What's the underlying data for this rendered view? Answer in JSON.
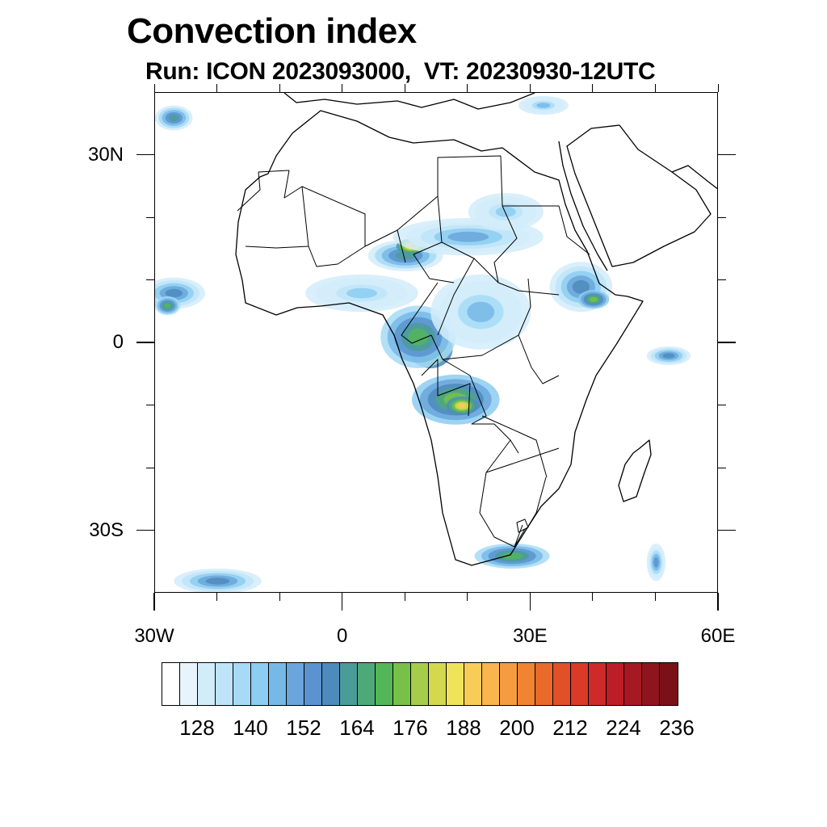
{
  "title": "Convection index",
  "subtitle": "Run: ICON 2023093000,  VT: 20230930-12UTC",
  "map": {
    "projection": "lat-lon",
    "lon_range": [
      -30,
      60
    ],
    "lat_range": [
      -40,
      40
    ],
    "x_ticks": [
      {
        "value": -30,
        "label": "30W"
      },
      {
        "value": 0,
        "label": "0"
      },
      {
        "value": 30,
        "label": "30E"
      },
      {
        "value": 60,
        "label": "60E"
      }
    ],
    "y_ticks": [
      {
        "value": 30,
        "label": "30N"
      },
      {
        "value": 0,
        "label": "0"
      },
      {
        "value": -30,
        "label": "30S"
      }
    ]
  },
  "colorbar": {
    "colors": [
      "#ffffff",
      "#e8f4fc",
      "#d2ecfa",
      "#bee4f8",
      "#a6daf6",
      "#8ccdf1",
      "#77b9e6",
      "#6aa6db",
      "#5a93cf",
      "#4d8bbd",
      "#4a9c99",
      "#4ea97a",
      "#53b659",
      "#77c148",
      "#a6cd4a",
      "#d4d84f",
      "#efe35a",
      "#f8cd57",
      "#f8b64d",
      "#f59c40",
      "#f08432",
      "#e96a2a",
      "#e25027",
      "#db3a28",
      "#cf2a2a",
      "#bc1d26",
      "#a61822",
      "#8e141d",
      "#7a1018"
    ],
    "labels": [
      "128",
      "140",
      "152",
      "164",
      "176",
      "188",
      "200",
      "212",
      "224",
      "236"
    ],
    "label_bins": [
      2,
      5,
      8,
      11,
      14,
      17,
      20,
      23,
      26,
      29
    ]
  },
  "convection_areas": [
    {
      "lon": 14,
      "lat": -1,
      "rx": 3.5,
      "ry": 3,
      "level": 17
    },
    {
      "lon": 15,
      "lat": -0.5,
      "rx": 1.5,
      "ry": 1.5,
      "level": 22
    },
    {
      "lon": 12,
      "lat": 1,
      "rx": 6,
      "ry": 5,
      "level": 12
    },
    {
      "lon": 18,
      "lat": -9,
      "rx": 7,
      "ry": 4,
      "level": 13
    },
    {
      "lon": 19,
      "lat": -10,
      "rx": 2.5,
      "ry": 1.5,
      "level": 17
    },
    {
      "lon": 10,
      "lat": 14,
      "rx": 6,
      "ry": 2.5,
      "level": 10
    },
    {
      "lon": 11,
      "lat": 15.5,
      "rx": 2.5,
      "ry": 1.2,
      "level": 18
    },
    {
      "lon": 20,
      "lat": 17,
      "rx": 12,
      "ry": 3,
      "level": 7
    },
    {
      "lon": 22,
      "lat": 5,
      "rx": 8,
      "ry": 6,
      "level": 6
    },
    {
      "lon": 38,
      "lat": 9,
      "rx": 5,
      "ry": 4,
      "level": 9
    },
    {
      "lon": 40,
      "lat": 7,
      "rx": 2.5,
      "ry": 1.5,
      "level": 13
    },
    {
      "lon": 3,
      "lat": 8,
      "rx": 9,
      "ry": 3,
      "level": 5
    },
    {
      "lon": -27,
      "lat": 8,
      "rx": 5,
      "ry": 2.5,
      "level": 9
    },
    {
      "lon": -28,
      "lat": 6,
      "rx": 2,
      "ry": 1.5,
      "level": 12
    },
    {
      "lon": -27,
      "lat": 36,
      "rx": 3,
      "ry": 2,
      "level": 10
    },
    {
      "lon": -20,
      "lat": -38,
      "rx": 7,
      "ry": 2,
      "level": 9
    },
    {
      "lon": 27,
      "lat": -34,
      "rx": 6,
      "ry": 2,
      "level": 12
    },
    {
      "lon": 52,
      "lat": -2,
      "rx": 3.5,
      "ry": 1.5,
      "level": 9
    },
    {
      "lon": 50,
      "lat": -35,
      "rx": 1.5,
      "ry": 3,
      "level": 8
    },
    {
      "lon": 32,
      "lat": 38,
      "rx": 4,
      "ry": 1.5,
      "level": 6
    },
    {
      "lon": 26,
      "lat": 21,
      "rx": 6,
      "ry": 3,
      "level": 5
    }
  ]
}
